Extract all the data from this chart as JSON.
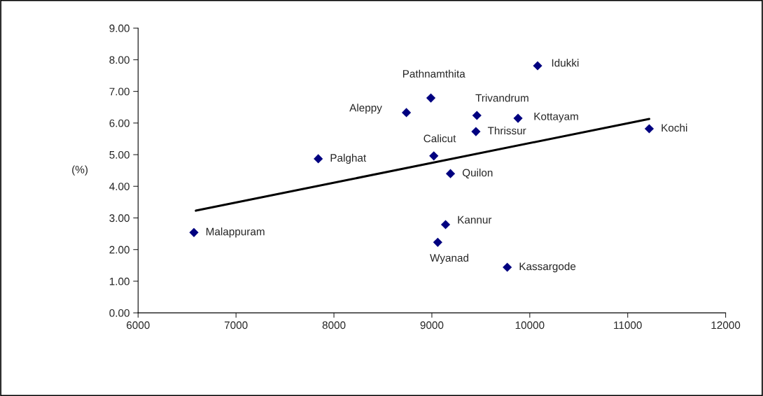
{
  "chart_data": {
    "type": "scatter",
    "ylabel": "(%)",
    "xlim": [
      6000,
      12000
    ],
    "xticks": [
      6000,
      7000,
      8000,
      9000,
      10000,
      11000,
      12000
    ],
    "ylim": [
      0,
      9
    ],
    "yticks": [
      {
        "value": 0,
        "label": "0.00"
      },
      {
        "value": 1,
        "label": "1.00"
      },
      {
        "value": 2,
        "label": "2.00"
      },
      {
        "value": 3,
        "label": "3.00"
      },
      {
        "value": 4,
        "label": "4.00"
      },
      {
        "value": 5,
        "label": "5.00"
      },
      {
        "value": 6,
        "label": "6.00"
      },
      {
        "value": 7,
        "label": "7.00"
      },
      {
        "value": 8,
        "label": "8.00"
      },
      {
        "value": 9,
        "label": "9.00"
      }
    ],
    "grid": false,
    "legend": false,
    "marker": "diamond",
    "series": [
      {
        "color": "#000080",
        "x": [
          6570,
          7840,
          8740,
          8990,
          9020,
          9190,
          9140,
          9060,
          9460,
          9450,
          9880,
          10080,
          9770,
          11220
        ],
        "values": [
          2.54,
          4.87,
          6.33,
          6.79,
          4.96,
          4.4,
          2.79,
          2.23,
          6.24,
          5.73,
          6.15,
          7.81,
          1.44,
          5.82
        ]
      },
      {
        "type": "line",
        "color": "#000000",
        "line_style": "solid",
        "marker": "none",
        "x": [
          6590,
          11220
        ],
        "values": [
          3.23,
          6.13
        ]
      }
    ],
    "annotations": [
      {
        "text": "Malappuram",
        "x": 6570,
        "y": 2.54
      },
      {
        "text": "Palghat",
        "x": 7840,
        "y": 4.87
      },
      {
        "text": "Aleppy",
        "x": 8740,
        "y": 6.33
      },
      {
        "text": "Pathnamthita",
        "x": 8990,
        "y": 6.79
      },
      {
        "text": "Calicut",
        "x": 9020,
        "y": 4.96
      },
      {
        "text": "Quilon",
        "x": 9190,
        "y": 4.4
      },
      {
        "text": "Kannur",
        "x": 9140,
        "y": 2.79
      },
      {
        "text": "Wyanad",
        "x": 9060,
        "y": 2.23
      },
      {
        "text": "Trivandrum",
        "x": 9460,
        "y": 6.24
      },
      {
        "text": "Thrissur",
        "x": 9450,
        "y": 5.73
      },
      {
        "text": "Kottayam",
        "x": 9880,
        "y": 6.15
      },
      {
        "text": "Idukki",
        "x": 10080,
        "y": 7.81
      },
      {
        "text": "Kassargode",
        "x": 9770,
        "y": 1.44
      },
      {
        "text": "Kochi",
        "x": 11220,
        "y": 5.82
      }
    ]
  }
}
